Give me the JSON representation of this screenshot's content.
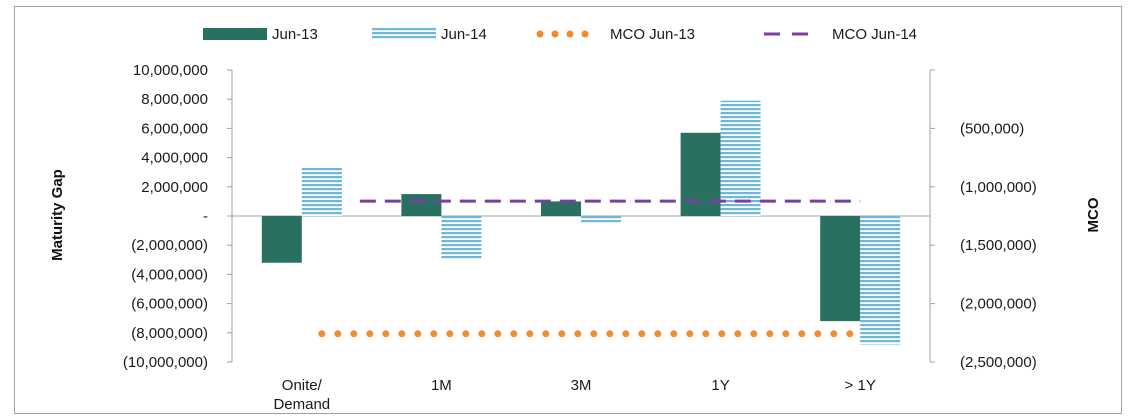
{
  "chart_data": {
    "type": "bar",
    "categories": [
      [
        "Onite/",
        "Demand"
      ],
      [
        "1M"
      ],
      [
        "3M"
      ],
      [
        "1Y"
      ],
      [
        "> 1Y"
      ]
    ],
    "series": [
      {
        "name": "Jun-13",
        "type": "bar",
        "axis": "left",
        "color": "#2a7060",
        "values": [
          -3200000,
          1500000,
          1000000,
          5700000,
          -7200000
        ]
      },
      {
        "name": "Jun-14",
        "type": "bar",
        "axis": "left",
        "color": "#6cb8d6",
        "pattern": "horizontal-stripes",
        "values": [
          3300000,
          -2900000,
          -500000,
          7900000,
          -8800000
        ]
      },
      {
        "name": "MCO Jun-13",
        "type": "line",
        "axis": "right",
        "color": "#f28a2e",
        "style": "dotted",
        "values": [
          -2250000,
          -2250000,
          -2250000,
          -2250000,
          -2250000
        ]
      },
      {
        "name": "MCO Jun-14",
        "type": "line",
        "axis": "right",
        "color": "#7a3fa0",
        "style": "dashed",
        "values": [
          -1200000,
          -1200000,
          -1200000,
          -1200000,
          -1200000
        ]
      }
    ],
    "y_left": {
      "label": "Maturity Gap",
      "ylim": [
        -10000000,
        10000000
      ],
      "ticks": [
        10000000,
        8000000,
        6000000,
        4000000,
        2000000,
        0,
        -2000000,
        -4000000,
        -6000000,
        -8000000,
        -10000000
      ],
      "tick_labels": [
        "10,000,000",
        "8,000,000",
        "6,000,000",
        "4,000,000",
        "2,000,000",
        "-",
        "(2,000,000)",
        "(4,000,000)",
        "(6,000,000)",
        "(8,000,000)",
        "(10,000,000)"
      ]
    },
    "y_right": {
      "label": "MCO",
      "ylim": [
        -2500000,
        0
      ],
      "ticks": [
        -500000,
        -1000000,
        -1500000,
        -2000000,
        -2500000
      ],
      "tick_labels": [
        "(500,000)",
        "(1,000,000)",
        "(1,500,000)",
        "(2,000,000)",
        "(2,500,000)"
      ]
    },
    "legend": {
      "position": "top",
      "entries": [
        "Jun-13",
        "Jun-14",
        "MCO Jun-13",
        "MCO Jun-14"
      ]
    },
    "grid": false
  }
}
